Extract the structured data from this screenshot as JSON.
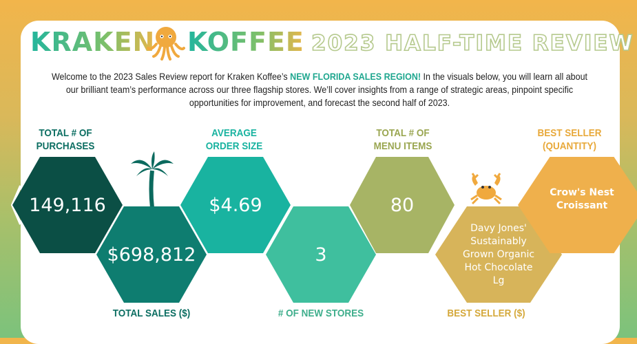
{
  "header": {
    "brand_left": "KRAKEN",
    "brand_right": "KOFFEE",
    "title": "2023 HALF-TIME REVIEW"
  },
  "intro": {
    "part1": "Welcome to the 2023 Sales Review report for Kraken Koffee’s ",
    "highlight": "NEW FLORIDA SALES REGION!",
    "part2": "  In the visuals below, you will learn all about our brilliant team’s performance across our three flagship stores.  We’ll cover insights from a range of strategic areas, pinpoint specific opportunities for improvement, and forecast the second half of 2023."
  },
  "kpis": {
    "purchases": {
      "label_1": "TOTAL # OF",
      "label_2": "PURCHASES",
      "value": "149,116"
    },
    "sales": {
      "label": "TOTAL SALES ($)",
      "value": "$698,812"
    },
    "aos": {
      "label_1": "AVERAGE",
      "label_2": "ORDER SIZE",
      "value": "$4.69"
    },
    "stores": {
      "label": "# OF NEW STORES",
      "value": "3"
    },
    "menu": {
      "label_1": "TOTAL # OF",
      "label_2": "MENU ITEMS",
      "value": "80"
    },
    "best_dollar": {
      "label": "BEST SELLER ($)",
      "value_1": "Davy Jones'",
      "value_2": "Sustainably",
      "value_3": "Grown Organic",
      "value_4": "Hot Chocolate",
      "value_5": "Lg"
    },
    "best_qty": {
      "label_1": "BEST SELLER",
      "label_2": "(QUANTITY)",
      "value_1": "Crow's Nest",
      "value_2": "Croissant"
    }
  },
  "colors": {
    "teal_dark": "#0b4f45",
    "teal": "#0e7d70",
    "teal_light": "#19b3a0",
    "mint": "#3fbf9e",
    "olive": "#a7b465",
    "gold": "#d7b45a",
    "orange": "#efb04c"
  },
  "icons": [
    "octopus-icon",
    "palm-tree-icon",
    "crab-icon",
    "chevron-left-icon",
    "chevron-right-icon"
  ]
}
